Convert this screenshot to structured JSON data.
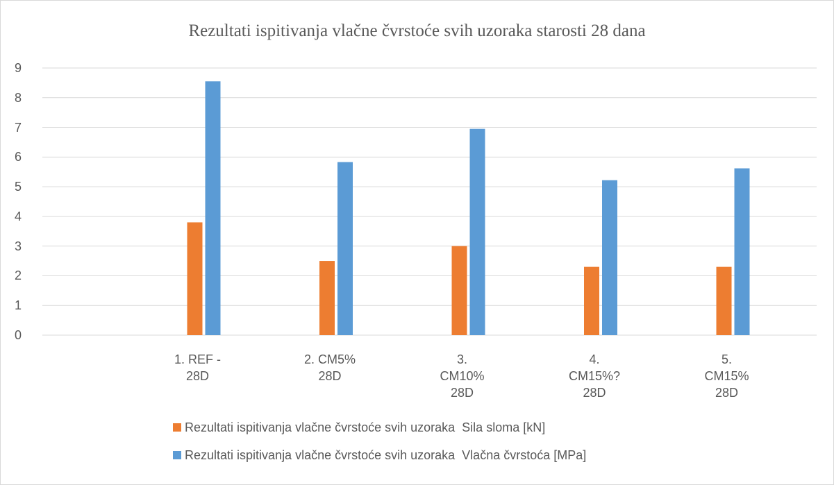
{
  "chart_data": {
    "type": "bar",
    "title": "Rezultati ispitivanja vlačne čvrstoće svih uzoraka  starosti 28 dana",
    "categories": [
      null,
      "1. REF -\n28D",
      "2. CM5%\n28D",
      "3.\nCM10%\n28D",
      "4.\nCM15%?\n28D",
      "5.\nCM15%\n28D"
    ],
    "series": [
      {
        "name": "Rezultati ispitivanja vlačne čvrstoće svih uzoraka  Sila sloma [kN]",
        "color": "#ed7d31",
        "values": [
          null,
          3.8,
          2.5,
          3.0,
          2.3,
          2.3
        ]
      },
      {
        "name": "Rezultati ispitivanja vlačne čvrstoće svih uzoraka  Vlačna čvrstoća [MPa]",
        "color": "#5b9bd5",
        "values": [
          null,
          8.55,
          5.83,
          6.95,
          5.22,
          5.62
        ]
      }
    ],
    "ylim": [
      0,
      9
    ],
    "yticks": [
      0,
      1,
      2,
      3,
      4,
      5,
      6,
      7,
      8,
      9
    ],
    "grid": true,
    "legend": "bottom"
  }
}
